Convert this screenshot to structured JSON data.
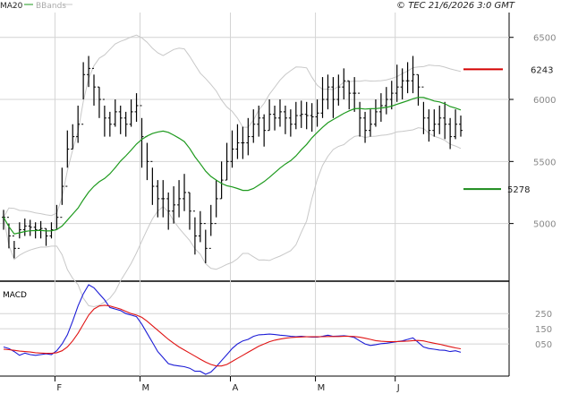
{
  "header": {
    "legend_ma": "MA20",
    "legend_bands": "BBands",
    "source": "© TEC 21/6/2026 3:0 GMT"
  },
  "colors": {
    "ma": "#1e9a1e",
    "bands": "#c8c8c8",
    "bars": "#000000",
    "macd": "#1c1cd6",
    "signal": "#e01414",
    "resistance": "#d40000",
    "support": "#1a8a1a",
    "grid": "#d4d4d4"
  },
  "chart_data": [
    {
      "type": "ohlc",
      "name": "price",
      "ylim": [
        4550,
        6700
      ],
      "ytick_labels": [
        "5000",
        "5500",
        "6000",
        "6500"
      ],
      "ytick_values": [
        5000,
        5500,
        6000,
        6500
      ],
      "xtick_labels": [
        "F",
        "M",
        "A",
        "M",
        "J"
      ],
      "xtick_index": [
        10,
        26,
        43,
        59,
        74
      ],
      "close": [
        5050,
        4900,
        4800,
        4950,
        4980,
        4970,
        4950,
        4960,
        4900,
        4950,
        5050,
        5300,
        5600,
        5700,
        5800,
        6200,
        6250,
        6100,
        6000,
        5850,
        5800,
        5900,
        5850,
        5800,
        5900,
        5950,
        5700,
        5500,
        5300,
        5200,
        5200,
        5100,
        5150,
        5200,
        5250,
        5100,
        4900,
        5000,
        4800,
        5000,
        5200,
        5350,
        5500,
        5600,
        5650,
        5650,
        5700,
        5800,
        5850,
        5750,
        5880,
        5850,
        5900,
        5850,
        5800,
        5870,
        5880,
        5870,
        5860,
        5890,
        6000,
        6100,
        6000,
        6100,
        6150,
        6050,
        6050,
        5850,
        5750,
        5800,
        5900,
        5950,
        6000,
        6050,
        6100,
        6150,
        6150,
        6200,
        6100,
        5850,
        5750,
        5800,
        5850,
        5800,
        5700,
        5800,
        5750
      ],
      "high": [
        5110,
        5000,
        4860,
        5010,
        5040,
        5030,
        5010,
        5020,
        4960,
        5010,
        5150,
        5450,
        5750,
        5800,
        5950,
        6300,
        6350,
        6200,
        6100,
        5950,
        5900,
        6000,
        5950,
        5900,
        6000,
        6050,
        5850,
        5650,
        5450,
        5350,
        5350,
        5250,
        5300,
        5350,
        5400,
        5250,
        5050,
        5100,
        4950,
        5150,
        5350,
        5500,
        5650,
        5750,
        5800,
        5780,
        5850,
        5920,
        5950,
        5880,
        6000,
        5950,
        6000,
        5950,
        5920,
        5980,
        5990,
        5980,
        5970,
        6000,
        6180,
        6200,
        6180,
        6200,
        6250,
        6150,
        6180,
        5980,
        5900,
        5920,
        6000,
        6050,
        6100,
        6150,
        6280,
        6250,
        6300,
        6350,
        6200,
        5980,
        5920,
        5920,
        5950,
        5980,
        5850,
        5920,
        5870
      ],
      "low": [
        4950,
        4800,
        4720,
        4880,
        4900,
        4900,
        4880,
        4880,
        4820,
        4880,
        4950,
        5150,
        5450,
        5600,
        5650,
        6000,
        6100,
        5950,
        5850,
        5700,
        5700,
        5780,
        5720,
        5700,
        5780,
        5820,
        5450,
        5350,
        5150,
        5050,
        5050,
        4950,
        5000,
        5050,
        5100,
        4950,
        4750,
        4850,
        4680,
        4900,
        5050,
        5200,
        5350,
        5450,
        5520,
        5520,
        5550,
        5650,
        5700,
        5620,
        5750,
        5750,
        5780,
        5720,
        5700,
        5760,
        5770,
        5760,
        5740,
        5780,
        5850,
        5920,
        5850,
        5950,
        6000,
        5920,
        5900,
        5700,
        5650,
        5700,
        5780,
        5820,
        5880,
        5920,
        5980,
        6000,
        6050,
        6050,
        5950,
        5720,
        5660,
        5700,
        5720,
        5680,
        5600,
        5680,
        5700
      ]
    },
    {
      "type": "line",
      "name": "macd",
      "ylim": [
        -150,
        440
      ],
      "ytick_labels": [
        "250",
        "150",
        "050"
      ],
      "ytick_values": [
        250,
        150,
        50
      ],
      "series": [
        {
          "name": "MACD",
          "values": [
            30,
            20,
            0,
            -25,
            -10,
            -20,
            -25,
            -20,
            -15,
            -20,
            5,
            50,
            110,
            200,
            300,
            380,
            440,
            420,
            380,
            340,
            290,
            280,
            270,
            250,
            240,
            230,
            180,
            120,
            60,
            0,
            -40,
            -80,
            -90,
            -95,
            -100,
            -110,
            -130,
            -130,
            -150,
            -135,
            -100,
            -60,
            -20,
            20,
            50,
            70,
            80,
            100,
            110,
            112,
            115,
            112,
            108,
            105,
            100,
            98,
            100,
            98,
            95,
            95,
            100,
            108,
            100,
            102,
            104,
            100,
            92,
            70,
            50,
            40,
            45,
            52,
            55,
            60,
            65,
            70,
            80,
            90,
            60,
            30,
            20,
            15,
            10,
            8,
            0,
            5,
            -5
          ]
        },
        {
          "name": "Signal",
          "values": [
            15,
            12,
            8,
            3,
            0,
            -3,
            -8,
            -10,
            -12,
            -12,
            -8,
            5,
            30,
            70,
            120,
            180,
            240,
            280,
            300,
            305,
            300,
            290,
            280,
            265,
            250,
            240,
            225,
            200,
            170,
            140,
            110,
            80,
            55,
            30,
            10,
            -10,
            -30,
            -50,
            -70,
            -85,
            -95,
            -95,
            -85,
            -65,
            -45,
            -25,
            -5,
            15,
            35,
            50,
            65,
            75,
            82,
            88,
            92,
            94,
            96,
            97,
            97,
            97,
            98,
            99,
            99,
            99,
            100,
            100,
            99,
            94,
            88,
            80,
            72,
            68,
            66,
            65,
            66,
            67,
            69,
            72,
            73,
            70,
            62,
            55,
            48,
            40,
            32,
            24,
            18
          ]
        }
      ]
    }
  ],
  "annotations": {
    "resistance_value": 6243,
    "resistance_label": "6243",
    "support_value": 5278,
    "support_label": "5278"
  },
  "macd_panel": {
    "label": "MACD"
  }
}
